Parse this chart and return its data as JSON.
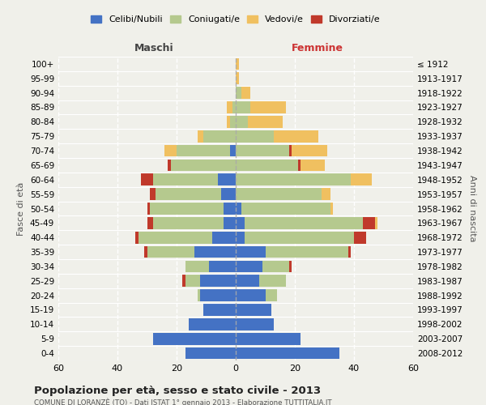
{
  "age_groups": [
    "0-4",
    "5-9",
    "10-14",
    "15-19",
    "20-24",
    "25-29",
    "30-34",
    "35-39",
    "40-44",
    "45-49",
    "50-54",
    "55-59",
    "60-64",
    "65-69",
    "70-74",
    "75-79",
    "80-84",
    "85-89",
    "90-94",
    "95-99",
    "100+"
  ],
  "birth_years": [
    "2008-2012",
    "2003-2007",
    "1998-2002",
    "1993-1997",
    "1988-1992",
    "1983-1987",
    "1978-1982",
    "1973-1977",
    "1968-1972",
    "1963-1967",
    "1958-1962",
    "1953-1957",
    "1948-1952",
    "1943-1947",
    "1938-1942",
    "1933-1937",
    "1928-1932",
    "1923-1927",
    "1918-1922",
    "1913-1917",
    "≤ 1912"
  ],
  "male": {
    "celibi": [
      17,
      28,
      16,
      11,
      12,
      12,
      9,
      14,
      8,
      4,
      4,
      5,
      6,
      0,
      2,
      0,
      0,
      0,
      0,
      0,
      0
    ],
    "coniugati": [
      0,
      0,
      0,
      0,
      1,
      5,
      8,
      16,
      25,
      24,
      25,
      22,
      22,
      22,
      18,
      11,
      2,
      1,
      0,
      0,
      0
    ],
    "vedovi": [
      0,
      0,
      0,
      0,
      0,
      0,
      0,
      0,
      0,
      0,
      0,
      0,
      0,
      0,
      4,
      2,
      1,
      2,
      0,
      0,
      0
    ],
    "divorziati": [
      0,
      0,
      0,
      0,
      0,
      1,
      0,
      1,
      1,
      2,
      1,
      2,
      4,
      1,
      0,
      0,
      0,
      0,
      0,
      0,
      0
    ]
  },
  "female": {
    "nubili": [
      35,
      22,
      13,
      12,
      10,
      8,
      9,
      10,
      3,
      3,
      2,
      0,
      0,
      0,
      0,
      0,
      0,
      0,
      0,
      0,
      0
    ],
    "coniugate": [
      0,
      0,
      0,
      0,
      4,
      9,
      9,
      28,
      37,
      40,
      30,
      29,
      39,
      21,
      18,
      13,
      4,
      5,
      2,
      0,
      0
    ],
    "vedove": [
      0,
      0,
      0,
      0,
      0,
      0,
      0,
      0,
      0,
      1,
      1,
      3,
      7,
      8,
      12,
      15,
      12,
      12,
      3,
      1,
      1
    ],
    "divorziate": [
      0,
      0,
      0,
      0,
      0,
      0,
      1,
      1,
      4,
      4,
      0,
      0,
      0,
      1,
      1,
      0,
      0,
      0,
      0,
      0,
      0
    ]
  },
  "colors": {
    "celibi_nubili": "#4472C4",
    "coniugati": "#b5c98e",
    "vedovi": "#f0c060",
    "divorziati": "#c0392b"
  },
  "xlim": 60,
  "title": "Popolazione per età, sesso e stato civile - 2013",
  "subtitle": "COMUNE DI LORANZÈ (TO) - Dati ISTAT 1° gennaio 2013 - Elaborazione TUTTITALIA.IT",
  "ylabel_left": "Fasce di età",
  "ylabel_right": "Anni di nascita",
  "xlabel_left": "Maschi",
  "xlabel_right": "Femmine",
  "legend_labels": [
    "Celibi/Nubili",
    "Coniugati/e",
    "Vedovi/e",
    "Divorziati/e"
  ],
  "bg_color": "#f0f0ea"
}
